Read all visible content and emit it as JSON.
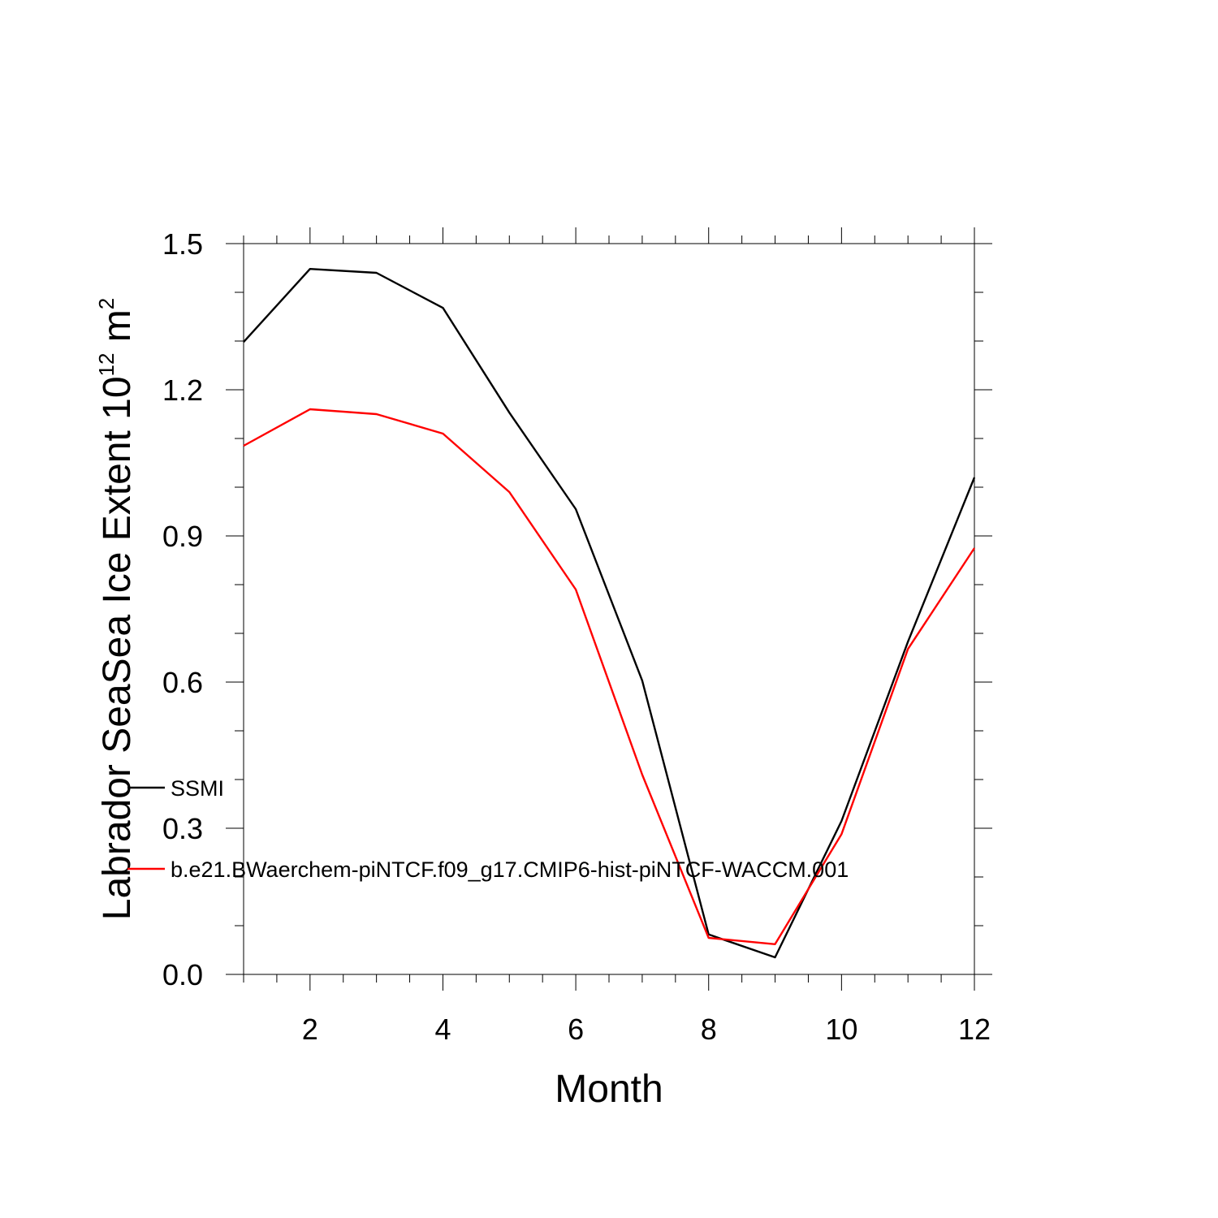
{
  "chart_data": {
    "type": "line",
    "xlabel": "Month",
    "ylabel": {
      "main": "Labrador SeaSea Ice Extent 10",
      "sup1": "12",
      "unit": " m",
      "sup2": "2"
    },
    "xlim": [
      1,
      12
    ],
    "ylim": [
      0,
      1.5
    ],
    "xticks": [
      2,
      4,
      6,
      8,
      10,
      12
    ],
    "xtick_labels": [
      "2",
      "4",
      "6",
      "8",
      "10",
      "12"
    ],
    "yticks": [
      0,
      0.3,
      0.6,
      0.9,
      1.2,
      1.5
    ],
    "ytick_labels": [
      "0.0",
      "0.3",
      "0.6",
      "0.9",
      "1.2",
      "1.5"
    ],
    "x": [
      1,
      2,
      3,
      4,
      5,
      6,
      7,
      8,
      9,
      10,
      11,
      12
    ],
    "series": [
      {
        "name": "SSMI",
        "color": "#000000",
        "values": [
          1.298,
          1.448,
          1.44,
          1.368,
          1.153,
          0.955,
          0.603,
          0.082,
          0.035,
          0.315,
          0.683,
          1.02
        ]
      },
      {
        "name": "b.e21.BWaerchem-piNTCF.f09_g17.CMIP6-hist-piNTCF-WACCM.001",
        "color": "#ff0000",
        "values": [
          1.085,
          1.16,
          1.15,
          1.11,
          0.99,
          0.79,
          0.41,
          0.075,
          0.062,
          0.288,
          0.668,
          0.875
        ]
      }
    ],
    "grid": false,
    "legend_position": "lower-left"
  }
}
